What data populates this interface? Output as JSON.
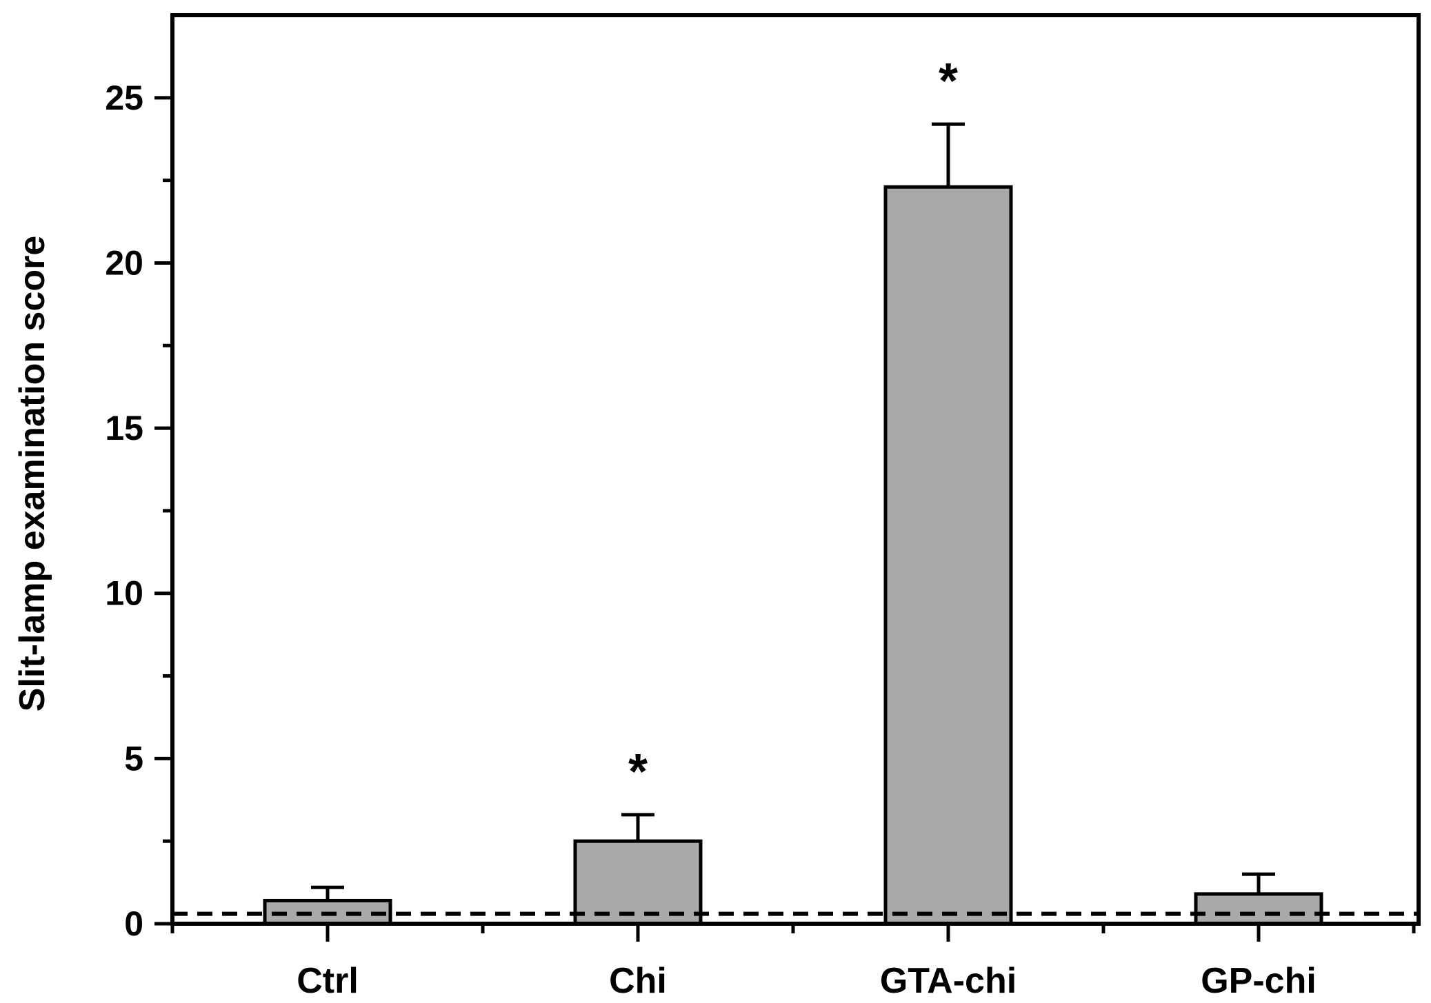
{
  "chart_data": {
    "type": "bar",
    "title": "",
    "xlabel": "",
    "ylabel": "Slit-lamp examination score",
    "categories": [
      "Ctrl",
      "Chi",
      "GTA-chi",
      "GP-chi"
    ],
    "series": [
      {
        "values": [
          0.7,
          2.5,
          22.3,
          0.9
        ],
        "errors": [
          0.4,
          0.8,
          1.9,
          0.6
        ],
        "significance": [
          "",
          "*",
          "*",
          ""
        ]
      }
    ],
    "reference_line": {
      "y": 0.3,
      "style": "dashed"
    },
    "ylim": [
      0,
      27.5
    ],
    "yticks": [
      0,
      5,
      10,
      15,
      20,
      25
    ],
    "grid": false,
    "legend": "none",
    "colors": {
      "bar_fill": "#a9a9a9",
      "stroke": "#000000"
    }
  }
}
